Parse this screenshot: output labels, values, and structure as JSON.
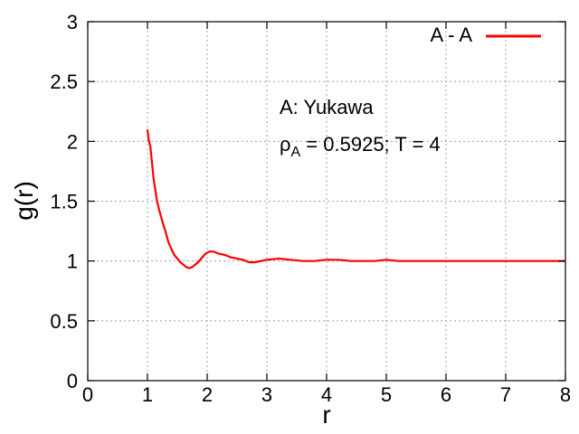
{
  "chart_data": {
    "type": "line",
    "xlabel": "r",
    "ylabel": "g(r)",
    "xlim": [
      0,
      8
    ],
    "ylim": [
      0,
      3
    ],
    "xticks": [
      0,
      1,
      2,
      3,
      4,
      5,
      6,
      7,
      8
    ],
    "yticks": [
      0,
      0.5,
      1,
      1.5,
      2,
      2.5,
      3
    ],
    "ytick_labels": [
      "0",
      "0.5",
      "1",
      "1.5",
      "2",
      "2.5",
      "3"
    ],
    "grid": true,
    "legend_position": "top-right",
    "annotation_line1": "A: Yukawa",
    "annotation_rho": "ρ",
    "annotation_rho_sub": "A",
    "annotation_rest": " = 0.5925; T = 4",
    "series": [
      {
        "name": "A - A",
        "color": "#ff0000",
        "x": [
          1.0,
          1.02,
          1.05,
          1.08,
          1.1,
          1.13,
          1.16,
          1.2,
          1.25,
          1.3,
          1.35,
          1.4,
          1.45,
          1.5,
          1.55,
          1.6,
          1.65,
          1.7,
          1.75,
          1.8,
          1.85,
          1.9,
          1.95,
          2.0,
          2.05,
          2.1,
          2.15,
          2.2,
          2.3,
          2.4,
          2.5,
          2.6,
          2.7,
          2.8,
          2.9,
          3.0,
          3.2,
          3.4,
          3.6,
          3.8,
          4.0,
          4.2,
          4.4,
          4.6,
          4.8,
          5.0,
          5.2,
          5.4,
          5.6,
          5.8,
          6.0,
          6.2,
          6.4,
          6.6,
          6.8,
          7.0,
          7.2,
          7.4,
          7.6,
          7.8,
          8.0
        ],
        "y": [
          2.1,
          2.02,
          1.95,
          1.8,
          1.7,
          1.6,
          1.5,
          1.42,
          1.33,
          1.25,
          1.16,
          1.1,
          1.05,
          1.02,
          0.99,
          0.97,
          0.95,
          0.94,
          0.95,
          0.97,
          0.99,
          1.02,
          1.05,
          1.07,
          1.08,
          1.08,
          1.07,
          1.06,
          1.05,
          1.03,
          1.02,
          1.01,
          0.99,
          0.99,
          1.0,
          1.01,
          1.02,
          1.01,
          1.0,
          1.0,
          1.01,
          1.01,
          1.0,
          1.0,
          1.0,
          1.01,
          1.0,
          1.0,
          1.0,
          1.0,
          1.0,
          1.0,
          1.0,
          1.0,
          1.0,
          1.0,
          1.0,
          1.0,
          1.0,
          1.0,
          1.0
        ]
      }
    ]
  }
}
